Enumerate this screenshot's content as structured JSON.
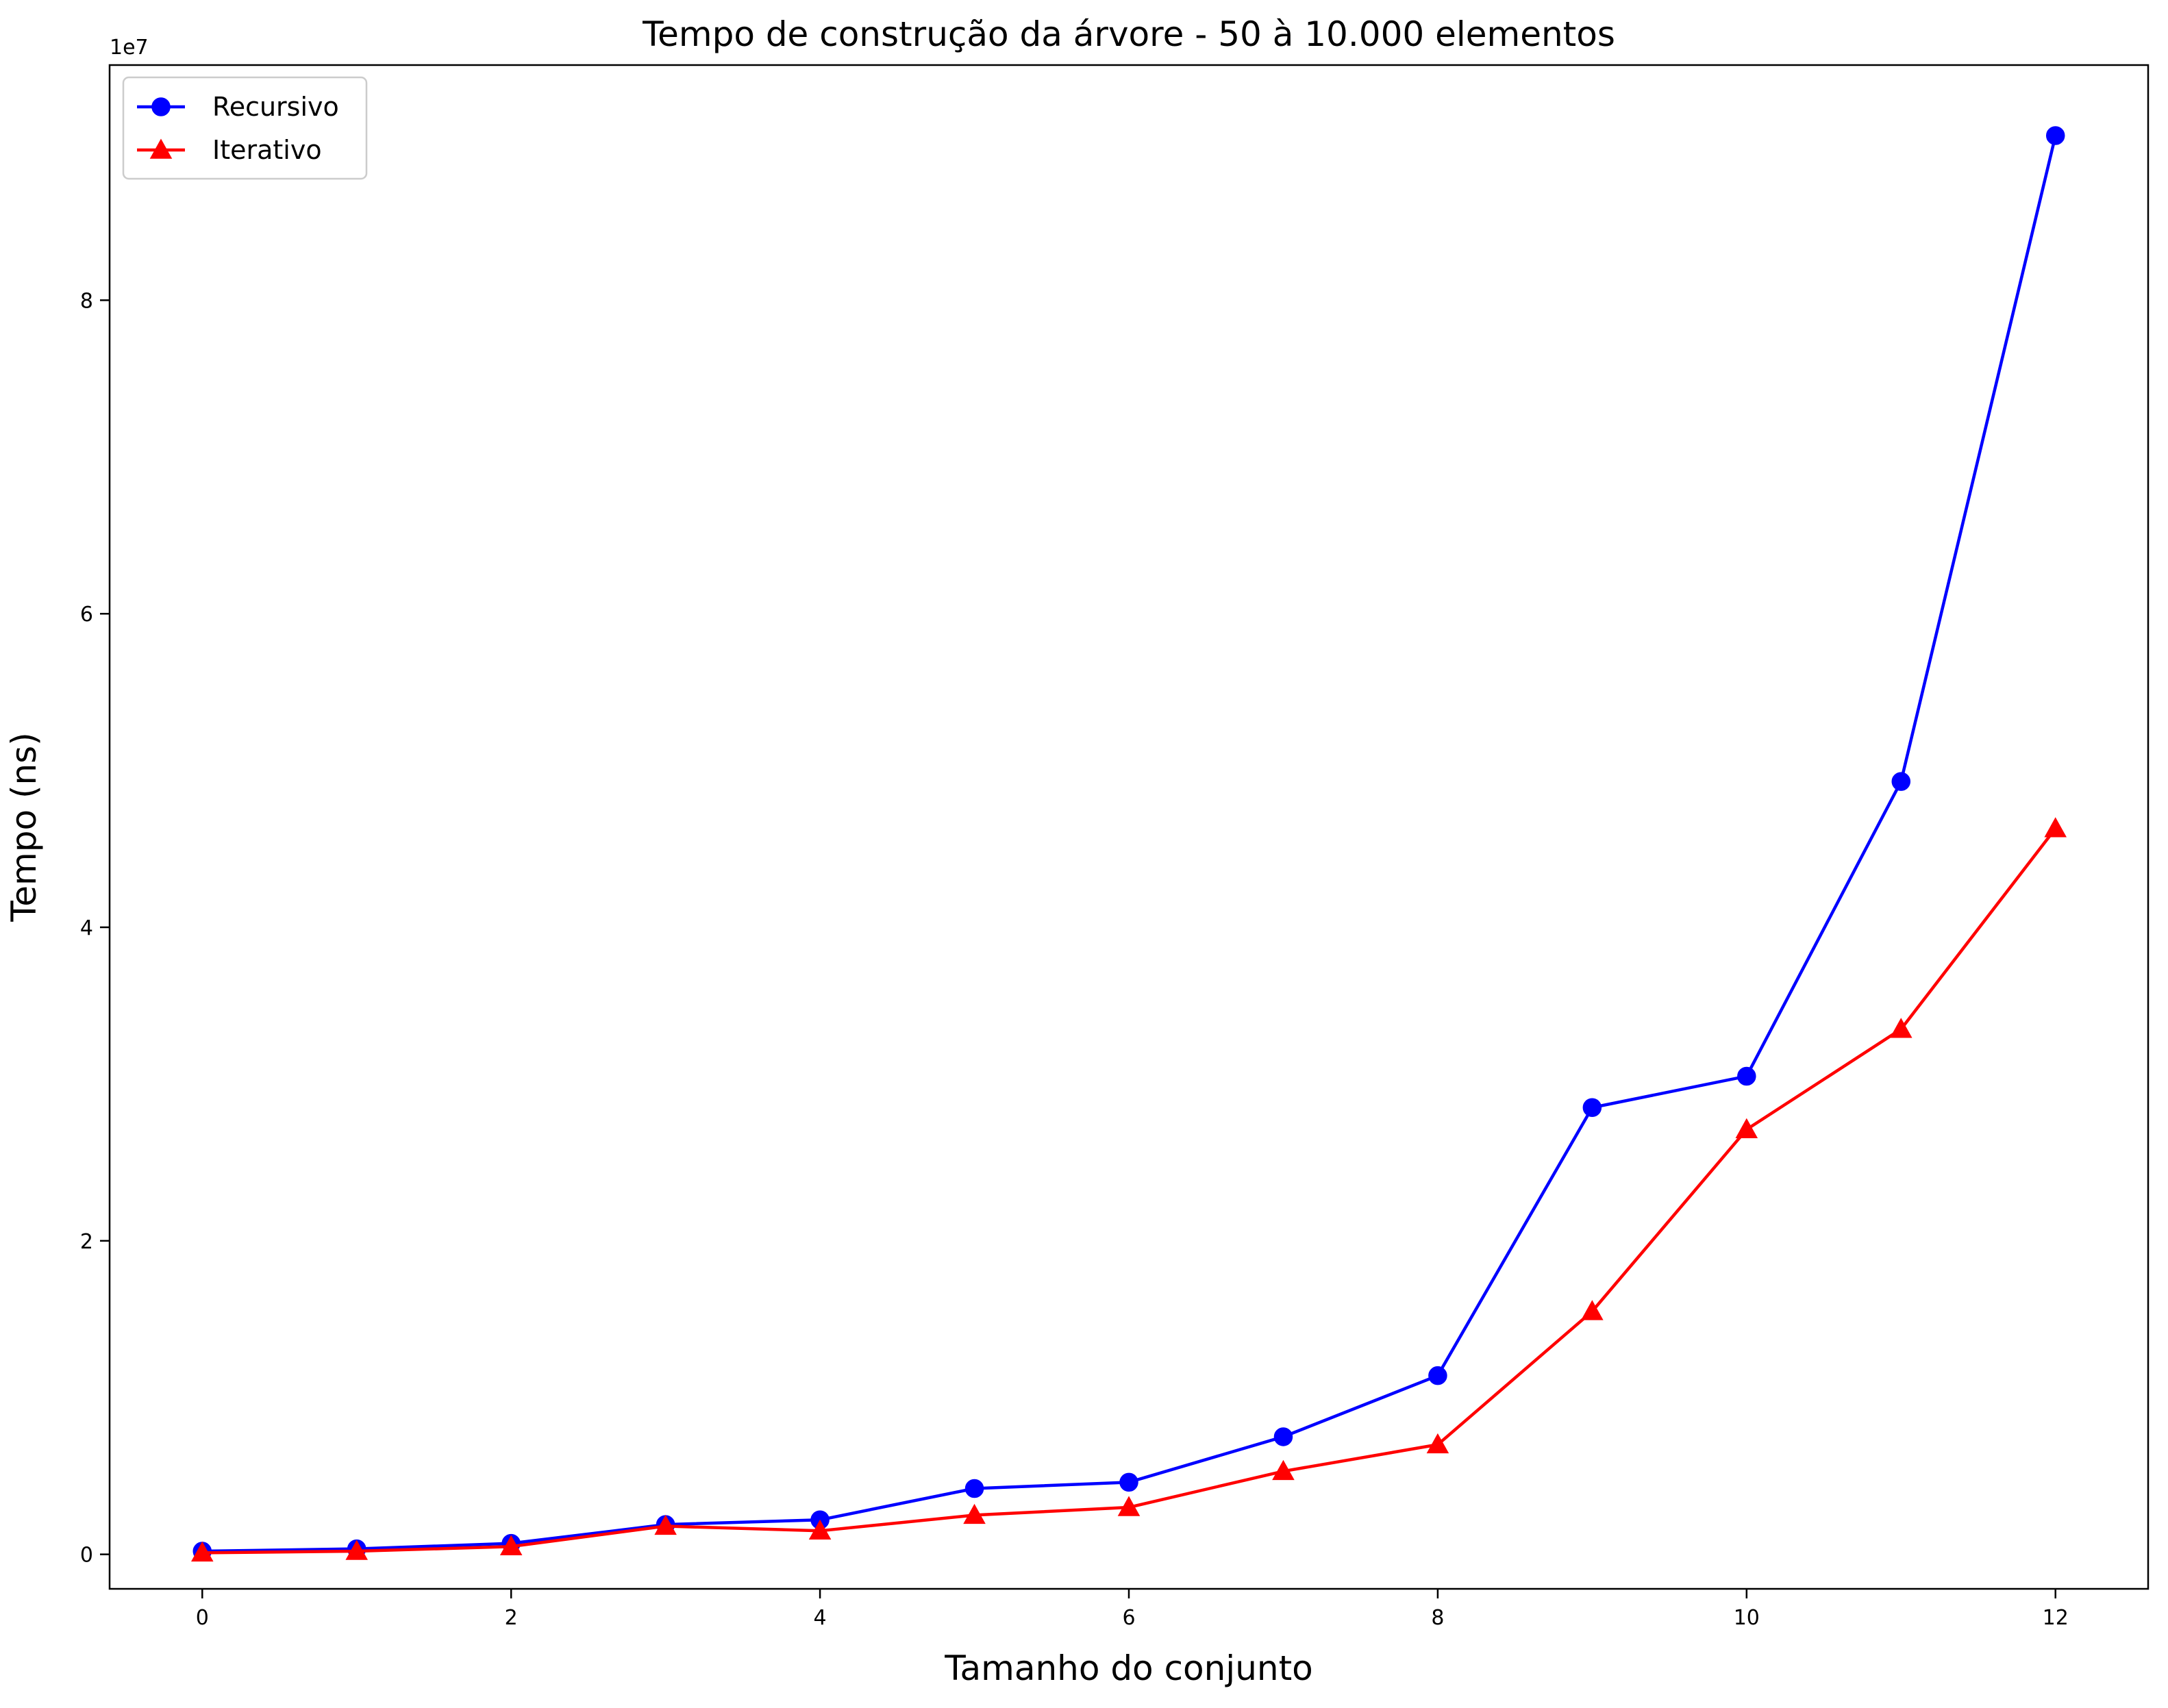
{
  "chart_data": {
    "type": "line",
    "title": "Tempo de construção da árvore - 50 à 10.000 elementos",
    "xlabel": "Tamanho do conjunto",
    "ylabel": "Tempo (ns)",
    "y_offset_text": "1e7",
    "x": [
      0,
      1,
      2,
      3,
      4,
      5,
      6,
      7,
      8,
      9,
      10,
      11,
      12
    ],
    "xlim": [
      -0.6,
      12.6
    ],
    "ylim": [
      -2200000,
      95000000
    ],
    "x_ticks": [
      0,
      2,
      4,
      6,
      8,
      10,
      12
    ],
    "x_tick_labels": [
      "0",
      "2",
      "4",
      "6",
      "8",
      "10",
      "12"
    ],
    "y_ticks": [
      0,
      20000000,
      40000000,
      60000000,
      80000000
    ],
    "y_tick_labels": [
      "0",
      "2",
      "4",
      "6",
      "8"
    ],
    "grid": false,
    "legend_position": "top-left",
    "series": [
      {
        "name": "Recursivo",
        "color": "#0000ff",
        "marker": "circle",
        "values": [
          200000,
          350000,
          700000,
          1900000,
          2200000,
          4200000,
          4600000,
          7500000,
          11400000,
          28500000,
          30500000,
          49300000,
          90500000
        ]
      },
      {
        "name": "Iterativo",
        "color": "#ff0000",
        "marker": "triangle",
        "values": [
          100000,
          200000,
          500000,
          1800000,
          1500000,
          2500000,
          3000000,
          5300000,
          7000000,
          15500000,
          27100000,
          33500000,
          46300000
        ]
      }
    ]
  }
}
